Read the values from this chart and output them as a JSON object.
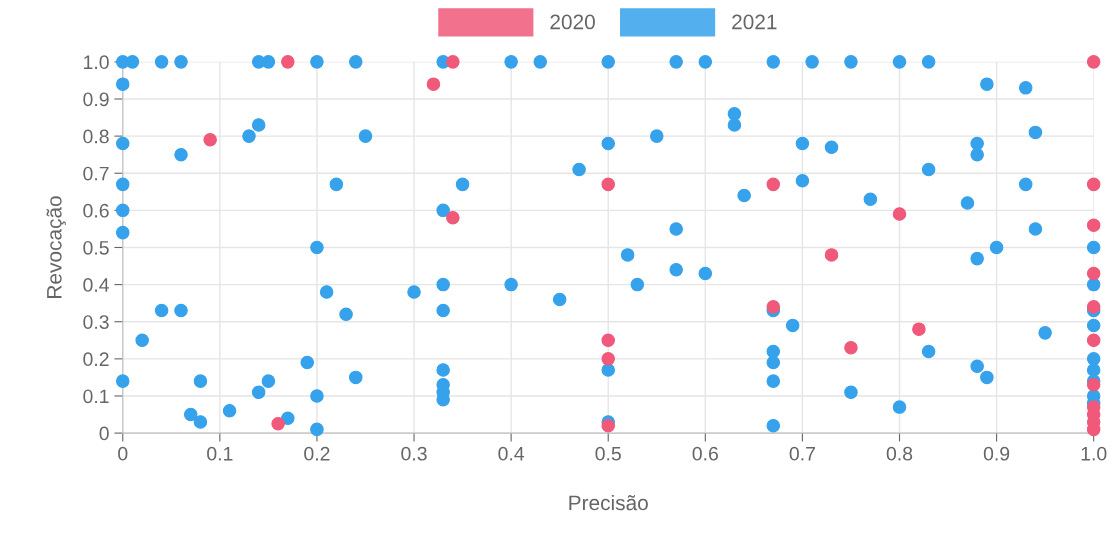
{
  "chart_data": {
    "type": "scatter",
    "xlabel": "Precisão",
    "ylabel": "Revocação",
    "xlim": [
      0,
      1
    ],
    "ylim": [
      0,
      1
    ],
    "xticks": [
      0,
      0.1,
      0.2,
      0.3,
      0.4,
      0.5,
      0.6,
      0.7,
      0.8,
      0.9,
      {
        "value": 1,
        "label": "1.0"
      }
    ],
    "yticks": [
      0,
      0.1,
      0.2,
      0.3,
      0.4,
      0.5,
      0.6,
      0.7,
      0.8,
      0.9,
      {
        "value": 1,
        "label": "1.0"
      }
    ],
    "grid": true,
    "legend": "top",
    "marker": "circle",
    "series": [
      {
        "name": "2020",
        "color": "#f0597a",
        "x": [
          0.17,
          0.34,
          0.32,
          0.09,
          0.34,
          0.16,
          0.5,
          0.5,
          0.5,
          0.5,
          0.67,
          0.67,
          0.73,
          0.75,
          0.8,
          0.82,
          1.0,
          1.0,
          1.0,
          1.0,
          1.0,
          1.0,
          1.0,
          1.0,
          1.0,
          1.0,
          1.0
        ],
        "values": [
          1.0,
          1.0,
          0.94,
          0.79,
          0.58,
          0.025,
          0.67,
          0.25,
          0.2,
          0.02,
          0.67,
          0.34,
          0.48,
          0.23,
          0.59,
          0.28,
          1.0,
          0.67,
          0.56,
          0.43,
          0.34,
          0.25,
          0.13,
          0.07,
          0.05,
          0.03,
          0.01
        ]
      },
      {
        "name": "2021",
        "color": "#36a2eb",
        "x": [
          0,
          0.01,
          0.04,
          0.06,
          0.14,
          0.15,
          0.2,
          0.24,
          0.33,
          0.4,
          0.43,
          0.5,
          0.57,
          0.6,
          0.67,
          0.71,
          0.75,
          0.8,
          0.83,
          0,
          0,
          0,
          0,
          0,
          0,
          0.02,
          0.04,
          0.06,
          0.06,
          0.07,
          0.08,
          0.08,
          0.11,
          0.13,
          0.14,
          0.14,
          0.15,
          0.17,
          0.19,
          0.2,
          0.2,
          0.2,
          0.21,
          0.22,
          0.23,
          0.24,
          0.25,
          0.3,
          0.33,
          0.33,
          0.33,
          0.33,
          0.33,
          0.33,
          0.33,
          0.35,
          0.4,
          0.45,
          0.47,
          0.5,
          0.5,
          0.5,
          0.52,
          0.53,
          0.55,
          0.57,
          0.57,
          0.6,
          0.63,
          0.63,
          0.64,
          0.67,
          0.67,
          0.67,
          0.67,
          0.67,
          0.69,
          0.7,
          0.7,
          0.73,
          0.75,
          0.77,
          0.8,
          0.83,
          0.83,
          0.87,
          0.88,
          0.88,
          0.88,
          0.88,
          0.89,
          0.89,
          0.9,
          0.93,
          0.93,
          0.94,
          0.94,
          0.95,
          1.0,
          1.0,
          1.0,
          1.0,
          1.0,
          1.0,
          1.0,
          1.0,
          1.0
        ],
        "values": [
          1,
          1,
          1,
          1,
          1,
          1,
          1,
          1,
          1,
          1,
          1,
          1,
          1,
          1,
          1,
          1,
          1,
          1,
          1,
          0.94,
          0.78,
          0.67,
          0.6,
          0.54,
          0.14,
          0.25,
          0.33,
          0.33,
          0.75,
          0.05,
          0.03,
          0.14,
          0.06,
          0.8,
          0.83,
          0.11,
          0.14,
          0.04,
          0.19,
          0.5,
          0.1,
          0.01,
          0.38,
          0.67,
          0.32,
          0.15,
          0.8,
          0.38,
          0.6,
          0.4,
          0.33,
          0.17,
          0.13,
          0.11,
          0.09,
          0.67,
          0.4,
          0.36,
          0.71,
          0.78,
          0.17,
          0.03,
          0.48,
          0.4,
          0.8,
          0.55,
          0.44,
          0.43,
          0.86,
          0.83,
          0.64,
          0.33,
          0.22,
          0.19,
          0.14,
          0.02,
          0.29,
          0.78,
          0.68,
          0.77,
          0.11,
          0.63,
          0.07,
          0.71,
          0.22,
          0.62,
          0.78,
          0.75,
          0.47,
          0.18,
          0.94,
          0.15,
          0.5,
          0.93,
          0.67,
          0.81,
          0.55,
          0.27,
          0.5,
          0.4,
          0.33,
          0.29,
          0.2,
          0.17,
          0.14,
          0.1,
          0.08
        ]
      }
    ]
  }
}
